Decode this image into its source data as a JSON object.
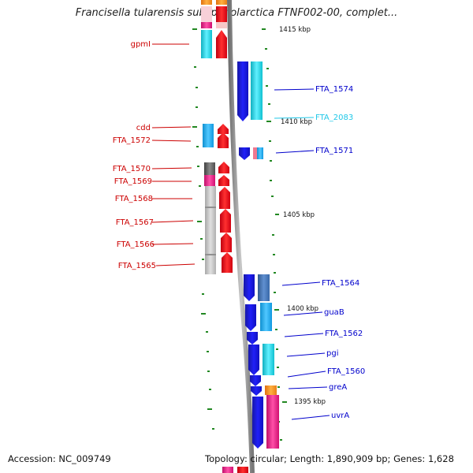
{
  "title": "Francisella tularensis subsp. holarctica FTNF002-00, complet...",
  "accession": "Accession: NC_009749",
  "summary": "Topology: circular; Length: 1,890,909 bp; Genes: 1,628",
  "colors": {
    "blue": "#1010e0",
    "cyan": "#20d8e8",
    "deepsky": "#20b0f0",
    "red": "#f01018",
    "pink": "#f0208a",
    "gray": "#c0c0c0",
    "darkgray": "#606060",
    "orange": "#f89020",
    "steel": "#4070b0",
    "tick": "#228822",
    "labelRed": "#cc0000",
    "labelBlue": "#0000cc",
    "labelCyan": "#20c8e8"
  },
  "scale_labels": [
    "1415 kbp",
    "1410 kbp",
    "1405 kbp",
    "1400 kbp",
    "1395 kbp"
  ],
  "left_labels": [
    "gpmI",
    "cdd",
    "FTA_1572",
    "FTA_1570",
    "FTA_1569",
    "FTA_1568",
    "FTA_1567",
    "FTA_1566",
    "FTA_1565"
  ],
  "right_labels": [
    "FTA_1574",
    "FTA_2083",
    "FTA_1571",
    "FTA_1564",
    "guaB",
    "FTA_1562",
    "pgi",
    "FTA_1560",
    "greA",
    "uvrA"
  ]
}
